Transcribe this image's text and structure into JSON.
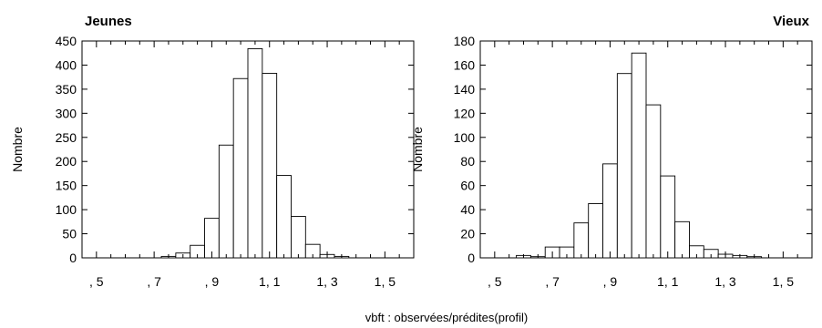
{
  "chart_data": [
    {
      "type": "bar",
      "title": "Jeunes",
      "ylabel": "Nombre",
      "ylim": [
        0,
        450
      ],
      "yticks": [
        0,
        50,
        100,
        150,
        200,
        250,
        300,
        350,
        400,
        450
      ],
      "xlim": [
        0.45,
        1.6
      ],
      "xticks": [
        0.5,
        0.7,
        0.9,
        1.1,
        1.3,
        1.5
      ],
      "xtick_labels": [
        ", 5",
        ", 7",
        ", 9",
        "1, 1",
        "1, 3",
        "1, 5"
      ],
      "bin_edges": [
        0.725,
        0.775,
        0.825,
        0.875,
        0.925,
        0.975,
        1.025,
        1.075,
        1.125,
        1.175,
        1.225,
        1.275,
        1.325,
        1.375
      ],
      "values": [
        3,
        10,
        26,
        82,
        234,
        372,
        434,
        383,
        171,
        86,
        28,
        7,
        3
      ]
    },
    {
      "type": "bar",
      "title": "Vieux",
      "ylabel": "Nombre",
      "ylim": [
        0,
        180
      ],
      "yticks": [
        0,
        20,
        40,
        60,
        80,
        100,
        120,
        140,
        160,
        180
      ],
      "xlim": [
        0.45,
        1.6
      ],
      "xticks": [
        0.5,
        0.7,
        0.9,
        1.1,
        1.3,
        1.5
      ],
      "xtick_labels": [
        ", 5",
        ", 7",
        ", 9",
        "1, 1",
        "1, 3",
        "1, 5"
      ],
      "bin_edges": [
        0.575,
        0.625,
        0.675,
        0.725,
        0.775,
        0.825,
        0.875,
        0.925,
        0.975,
        1.025,
        1.075,
        1.125,
        1.175,
        1.225,
        1.275,
        1.325,
        1.375,
        1.425
      ],
      "values": [
        2,
        1,
        9,
        9,
        29,
        45,
        78,
        153,
        170,
        127,
        68,
        30,
        10,
        7,
        3,
        2,
        1
      ]
    }
  ],
  "shared_xlabel": "vbft : observées/prédites(profil)"
}
